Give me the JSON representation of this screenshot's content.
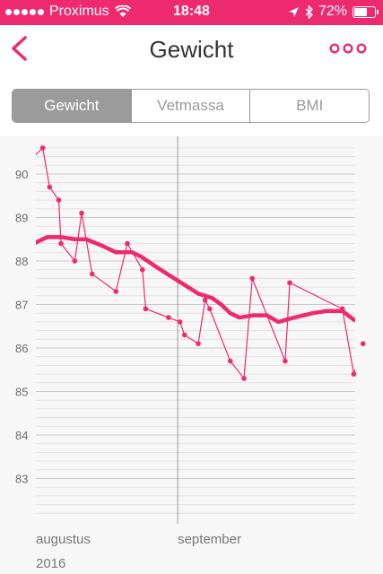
{
  "status_bar": {
    "carrier": "Proximus",
    "time": "18:48",
    "battery_percent": "72%",
    "battery_level": 0.72
  },
  "nav": {
    "title": "Gewicht"
  },
  "segments": [
    {
      "label": "Gewicht",
      "active": true
    },
    {
      "label": "Vetmassa",
      "active": false
    },
    {
      "label": "BMI",
      "active": false
    }
  ],
  "colors": {
    "accent": "#ee2a6f",
    "segment_active": "#9b9b9b"
  },
  "icons": {
    "back": "chevron-left-icon",
    "more": "more-dots-icon",
    "wifi": "wifi-icon",
    "location": "location-arrow-icon",
    "bluetooth": "bluetooth-icon",
    "battery": "battery-icon"
  },
  "chart_data": {
    "type": "line",
    "ylim": [
      82,
      91
    ],
    "y_ticks": [
      83,
      84,
      85,
      86,
      87,
      88,
      89,
      90
    ],
    "x_labels": [
      {
        "label": "augustus",
        "sublabel": "2016",
        "day": 0
      },
      {
        "label": "september",
        "sublabel": "",
        "day": 31
      }
    ],
    "grid": "minor horizontal lines every 0.2",
    "series": [
      {
        "style": "thin-with-points",
        "points": [
          [
            1.5,
            90.6
          ],
          [
            3,
            89.7
          ],
          [
            5,
            89.4
          ],
          [
            5.5,
            88.4
          ],
          [
            8.5,
            88.0
          ],
          [
            10,
            89.1
          ],
          [
            12.3,
            87.7
          ],
          [
            17.5,
            87.3
          ],
          [
            20,
            88.4
          ],
          [
            23.3,
            87.8
          ],
          [
            24,
            86.9
          ],
          [
            29,
            86.7
          ],
          [
            31.5,
            86.6
          ],
          [
            32.5,
            86.3
          ],
          [
            35.5,
            86.1
          ],
          [
            37,
            87.1
          ],
          [
            38,
            86.9
          ],
          [
            42.5,
            85.7
          ],
          [
            45.5,
            85.3
          ],
          [
            47.3,
            87.6
          ],
          [
            54.5,
            85.7
          ],
          [
            55.5,
            87.5
          ],
          [
            67,
            86.9
          ],
          [
            69.5,
            85.4
          ],
          [
            71.5,
            86.1
          ]
        ],
        "lead_in": [
          -0.5,
          90.4
        ]
      },
      {
        "style": "thick-trend",
        "points": [
          [
            -0.5,
            88.4
          ],
          [
            2.5,
            88.55
          ],
          [
            5.5,
            88.55
          ],
          [
            8.5,
            88.5
          ],
          [
            11,
            88.5
          ],
          [
            14.5,
            88.35
          ],
          [
            17.5,
            88.2
          ],
          [
            21,
            88.2
          ],
          [
            23,
            88.1
          ],
          [
            26.5,
            87.85
          ],
          [
            29.5,
            87.65
          ],
          [
            32.5,
            87.45
          ],
          [
            35.5,
            87.25
          ],
          [
            38.5,
            87.15
          ],
          [
            40.5,
            87.0
          ],
          [
            42.5,
            86.8
          ],
          [
            44.5,
            86.7
          ],
          [
            47.5,
            86.75
          ],
          [
            50.5,
            86.75
          ],
          [
            53,
            86.6
          ],
          [
            56.5,
            86.7
          ],
          [
            60.5,
            86.8
          ],
          [
            63.5,
            86.85
          ],
          [
            67,
            86.85
          ],
          [
            69.5,
            86.65
          ],
          [
            71.5,
            86.6
          ]
        ]
      }
    ]
  }
}
